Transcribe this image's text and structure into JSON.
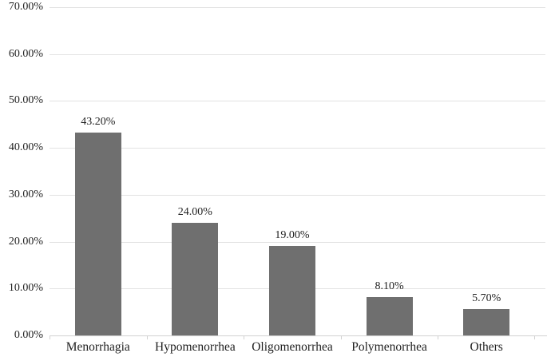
{
  "chart_data": {
    "type": "bar",
    "title": "",
    "xlabel": "",
    "ylabel": "",
    "categories": [
      "Menorrhagia",
      "Hypomenorrhea",
      "Oligomenorrhea",
      "Polymenorrhea",
      "Others"
    ],
    "values": [
      43.2,
      24.0,
      19.0,
      8.1,
      5.7
    ],
    "data_labels": [
      "43.20%",
      "24.00%",
      "19.00%",
      "8.10%",
      "5.70%"
    ],
    "y_axis": {
      "min": 0,
      "max": 70,
      "step": 10,
      "tick_labels": [
        "0.00%",
        "10.00%",
        "20.00%",
        "30.00%",
        "40.00%",
        "50.00%",
        "60.00%",
        "70.00%"
      ]
    },
    "grid": true,
    "legend": "none",
    "colors": {
      "bar": "#6f6f6f",
      "gridline": "#e2e2e2",
      "axis_line": "#d2d2d2",
      "text": "#1f1f1f"
    }
  }
}
